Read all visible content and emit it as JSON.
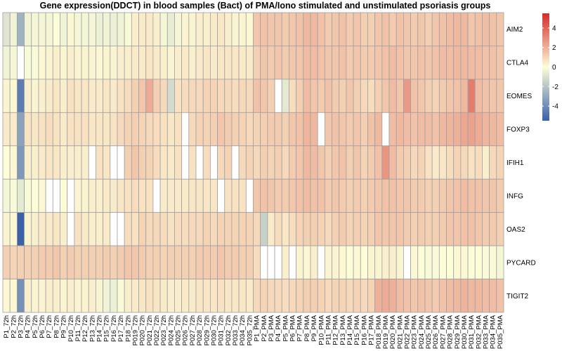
{
  "title": "Gene expression(DDCT) in blood samples (Bact) of PMA/Iono stimulated and unstimulated psoriasis groups",
  "colors": {
    "neg": "#3a62a8",
    "mid": "#fdfdd8",
    "pos": "#d32c2c",
    "grid": "#a0a0a0",
    "missing": "#ffffff"
  },
  "chart_data": {
    "type": "heatmap",
    "rows": [
      "AIM2",
      "CTLA4",
      "EOMES",
      "FOXP3",
      "IFIH1",
      "INFG",
      "OAS2",
      "PYCARD",
      "TIGIT2"
    ],
    "columns": [
      "P1_72h",
      "P2_72h",
      "P3_72h",
      "P4_72h",
      "P5_72h",
      "P6_72h",
      "P7_72h",
      "P8_72h",
      "P9_72h",
      "P10_72h",
      "P11_72h",
      "P12_72h",
      "P13_72h",
      "P14_72h",
      "P15_72h",
      "P16_72h",
      "P17_72h",
      "P18_72h",
      "P019_72h",
      "P020_72h",
      "P021_72h",
      "P022_72h",
      "P023_72h",
      "P024_72h",
      "P025_72h",
      "P026_72h",
      "P027_72h",
      "P028_72h",
      "P029_72h",
      "P030_72h",
      "P031_72h",
      "P032_72h",
      "P033_72h",
      "P034_72h",
      "P035_72h",
      "P1_PMA",
      "P2_PMA",
      "P3_PMA",
      "P4_PMA",
      "P5_PMA",
      "P6_PMA",
      "P7_PMA",
      "P8_PMA",
      "P9_PMA",
      "P10_PMA",
      "P11_PMA",
      "P12_PMA",
      "P13_PMA",
      "P14_PMA",
      "P15_PMA",
      "P16_PMA",
      "P17_PMA",
      "P018_PMA",
      "P019_PMA",
      "P020_PMA",
      "P021_PMA",
      "P022_PMA",
      "P023_PMA",
      "P024_PMA",
      "P025_PMA",
      "P026_PMA",
      "P027_PMA",
      "P028_PMA",
      "P029_PMA",
      "P030_PMA",
      "P031_PMA",
      "P032_PMA",
      "P033_PMA",
      "P034_PMA",
      "P035_PMA"
    ],
    "values": [
      [
        -0.7,
        -0.3,
        -2.2,
        -0.3,
        -0.2,
        -0.2,
        -0.2,
        0.0,
        -0.3,
        0.1,
        -0.2,
        -0.2,
        -0.2,
        -0.4,
        -0.3,
        -0.4,
        -0.3,
        -0.1,
        0.3,
        0.4,
        0.4,
        0.3,
        -0.2,
        -0.5,
        -0.2,
        0.2,
        0.2,
        0.3,
        0.3,
        0.4,
        0.5,
        0.3,
        0.2,
        0.2,
        0.1,
        1.2,
        1.3,
        1.2,
        1.2,
        1.1,
        1.2,
        1.3,
        1.5,
        1.5,
        1.3,
        1.1,
        1.2,
        1.3,
        1.1,
        1.2,
        1.0,
        1.0,
        1.2,
        1.3,
        1.1,
        1.3,
        1.2,
        1.1,
        1.2,
        1.0,
        1.2,
        1.3,
        1.4,
        1.5,
        1.5,
        1.2,
        1.3,
        1.4,
        1.3,
        1.2
      ],
      [
        -0.3,
        -0.2,
        null,
        -0.1,
        -0.1,
        0.1,
        0.2,
        0.3,
        0.2,
        0.3,
        0.2,
        0.2,
        0.2,
        0.1,
        0.2,
        0.2,
        0.3,
        0.3,
        0.4,
        0.4,
        0.5,
        0.4,
        0.3,
        0.2,
        0.3,
        0.4,
        0.3,
        0.4,
        0.5,
        0.4,
        0.5,
        0.5,
        0.5,
        0.4,
        0.4,
        1.0,
        1.2,
        1.1,
        1.2,
        1.1,
        1.2,
        1.2,
        1.4,
        1.4,
        1.3,
        1.2,
        1.2,
        1.3,
        1.1,
        1.2,
        1.1,
        1.1,
        1.2,
        1.3,
        1.4,
        1.3,
        1.2,
        1.2,
        1.3,
        1.2,
        1.3,
        1.4,
        1.4,
        1.5,
        1.5,
        1.4,
        1.4,
        1.3,
        1.3,
        1.2
      ],
      [
        0.2,
        0.1,
        -3.8,
        0.3,
        0.2,
        0.3,
        0.4,
        0.5,
        0.3,
        0.6,
        0.5,
        0.5,
        0.4,
        0.4,
        0.5,
        0.4,
        0.6,
        0.7,
        1.0,
        1.2,
        1.8,
        1.0,
        0.8,
        -1.0,
        0.6,
        0.7,
        0.8,
        0.8,
        0.9,
        0.9,
        0.8,
        0.8,
        0.7,
        0.8,
        0.8,
        1.3,
        1.2,
        1.0,
        null,
        -0.6,
        0.7,
        1.0,
        1.4,
        1.2,
        1.1,
        1.3,
        1.1,
        1.0,
        1.2,
        1.0,
        0.8,
        0.7,
        1.0,
        1.2,
        1.4,
        1.2,
        2.2,
        1.3,
        1.2,
        1.0,
        0.9,
        1.1,
        1.2,
        1.3,
        1.5,
        2.8,
        1.4,
        1.3,
        1.2,
        1.2
      ],
      [
        0.4,
        0.4,
        -2.7,
        0.6,
        0.5,
        0.6,
        0.7,
        0.6,
        0.4,
        0.6,
        0.6,
        0.6,
        0.5,
        0.5,
        0.5,
        0.6,
        0.8,
        0.9,
        1.0,
        0.9,
        0.8,
        0.7,
        0.6,
        0.5,
        0.6,
        null,
        0.8,
        0.9,
        0.9,
        1.0,
        1.2,
        1.1,
        1.0,
        0.9,
        0.8,
        0.9,
        1.0,
        1.1,
        1.1,
        1.0,
        1.2,
        1.3,
        1.6,
        1.5,
        null,
        1.2,
        1.3,
        1.2,
        1.1,
        1.2,
        1.0,
        1.3,
        1.5,
        null,
        1.4,
        1.5,
        1.4,
        1.3,
        1.4,
        1.4,
        1.3,
        1.5,
        1.6,
        1.7,
        1.9,
        2.0,
        1.8,
        1.6,
        1.5,
        1.4
      ],
      [
        0.0,
        0.1,
        -3.0,
        0.3,
        0.3,
        0.4,
        0.5,
        0.5,
        0.3,
        0.3,
        0.3,
        0.3,
        null,
        0.6,
        0.5,
        null,
        null,
        1.0,
        1.2,
        1.0,
        0.9,
        0.7,
        0.5,
        0.4,
        0.6,
        null,
        0.6,
        null,
        0.7,
        null,
        0.8,
        0.9,
        null,
        0.8,
        0.9,
        0.8,
        1.0,
        0.9,
        1.0,
        0.8,
        1.1,
        1.2,
        1.5,
        1.4,
        1.2,
        1.0,
        1.2,
        1.3,
        1.0,
        1.2,
        0.9,
        1.1,
        1.3,
        2.3,
        1.4,
        1.1,
        1.0,
        0.8,
        0.9,
        0.6,
        0.4,
        0.5,
        0.7,
        0.9,
        0.8,
        0.6,
        0.7,
        0.3,
        0.8,
        0.9
      ],
      [
        -0.2,
        -0.1,
        -0.6,
        -0.1,
        0.0,
        0.1,
        null,
        null,
        0.0,
        null,
        0.2,
        0.2,
        0.3,
        0.3,
        0.4,
        0.4,
        0.5,
        0.6,
        0.7,
        0.6,
        0.6,
        null,
        0.4,
        0.4,
        0.4,
        0.4,
        0.5,
        0.5,
        0.5,
        0.5,
        null,
        0.6,
        0.6,
        0.6,
        null,
        1.2,
        1.3,
        1.2,
        1.1,
        1.1,
        1.2,
        1.3,
        1.4,
        1.3,
        1.3,
        1.1,
        1.2,
        1.1,
        1.0,
        1.1,
        1.0,
        1.1,
        1.2,
        1.3,
        1.3,
        1.2,
        1.2,
        1.1,
        1.1,
        1.0,
        1.0,
        1.1,
        1.2,
        1.3,
        1.4,
        1.3,
        1.3,
        1.2,
        1.2,
        1.1
      ],
      [
        0.2,
        0.1,
        -4.6,
        0.2,
        0.3,
        0.4,
        0.4,
        0.5,
        0.3,
        null,
        0.6,
        0.4,
        0.3,
        0.3,
        0.4,
        null,
        null,
        0.7,
        0.6,
        0.9,
        0.8,
        0.8,
        0.7,
        0.6,
        0.7,
        0.7,
        0.8,
        0.8,
        0.9,
        0.8,
        0.9,
        0.9,
        0.9,
        0.9,
        0.9,
        0.8,
        -1.3,
        0.4,
        0.7,
        0.5,
        0.7,
        0.9,
        1.0,
        1.0,
        0.9,
        0.8,
        1.0,
        1.1,
        0.9,
        1.0,
        0.9,
        1.0,
        1.2,
        1.2,
        1.2,
        1.2,
        1.1,
        1.0,
        1.1,
        1.0,
        1.0,
        1.1,
        1.2,
        1.2,
        1.3,
        1.3,
        1.2,
        1.1,
        1.1,
        1.0
      ],
      [
        1.0,
        0.9,
        1.0,
        1.0,
        1.0,
        1.1,
        1.1,
        1.2,
        1.0,
        1.1,
        1.0,
        1.0,
        1.0,
        1.0,
        1.1,
        1.0,
        1.1,
        1.2,
        1.2,
        1.1,
        1.0,
        1.0,
        0.9,
        1.0,
        1.0,
        1.0,
        1.0,
        1.1,
        1.1,
        1.1,
        1.2,
        1.1,
        1.1,
        1.0,
        1.0,
        0.7,
        null,
        null,
        null,
        0.3,
        null,
        0.2,
        0.1,
        0.3,
        null,
        0.2,
        0.2,
        0.1,
        0.0,
        0.1,
        0.0,
        0.2,
        0.2,
        0.3,
        0.3,
        0.2,
        null,
        0.1,
        0.0,
        -0.1,
        -0.1,
        0.0,
        0.0,
        0.1,
        0.1,
        0.0,
        0.0,
        -0.1,
        -0.1,
        -0.2
      ],
      [
        0.1,
        0.1,
        -3.2,
        0.3,
        0.2,
        0.2,
        0.3,
        0.3,
        0.2,
        0.3,
        0.2,
        0.2,
        0.3,
        0.2,
        -0.3,
        -0.4,
        -0.1,
        0.3,
        0.4,
        0.5,
        0.6,
        0.5,
        0.4,
        0.3,
        0.3,
        0.4,
        0.4,
        0.5,
        0.5,
        0.5,
        0.6,
        0.5,
        0.5,
        0.5,
        0.4,
        0.8,
        0.9,
        0.8,
        0.8,
        0.7,
        0.8,
        0.9,
        1.0,
        1.0,
        0.9,
        0.8,
        0.9,
        0.9,
        0.8,
        0.9,
        0.8,
        0.9,
        1.7,
        1.8,
        1.7,
        1.4,
        1.3,
        1.2,
        1.3,
        1.2,
        1.1,
        1.3,
        1.4,
        1.5,
        1.6,
        1.5,
        1.5,
        1.4,
        1.4,
        1.3
      ]
    ],
    "legend": {
      "min": -5.5,
      "max": 5.5,
      "ticks": [
        4,
        2,
        0,
        -2,
        -4
      ],
      "tick_labels": [
        "4",
        "2",
        "0",
        "-2",
        "-4"
      ],
      "position": "right"
    }
  }
}
